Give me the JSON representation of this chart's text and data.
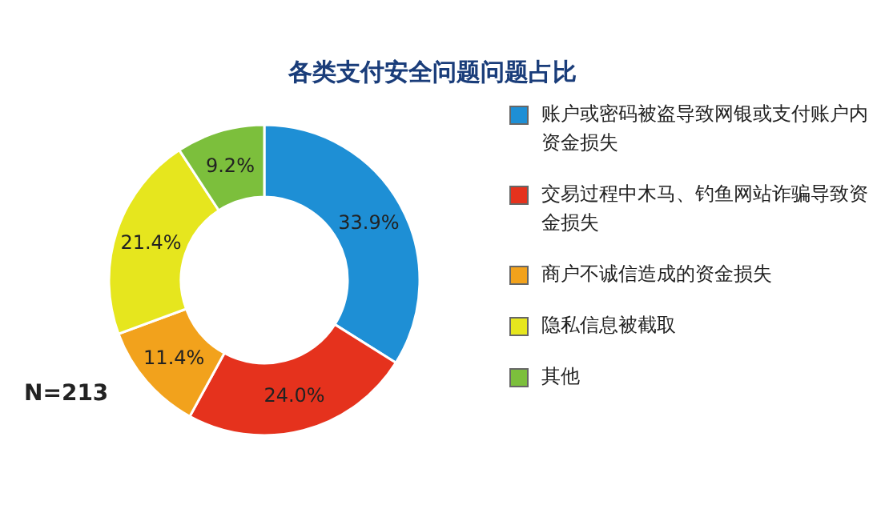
{
  "chart_data": {
    "type": "donut",
    "title": "各类支付安全问题问题占比",
    "categories": [
      "账户或密码被盗导致网银或支付账户内资金损失",
      "交易过程中木马、钓鱼网站诈骗导致资金损失",
      "商户不诚信造成的资金损失",
      "隐私信息被截取",
      "其他"
    ],
    "values": [
      33.9,
      24.0,
      11.4,
      21.4,
      9.2
    ],
    "value_labels": [
      "33.9%",
      "24.0%",
      "11.4%",
      "21.4%",
      "9.2%"
    ],
    "colors": [
      "#1e8fd5",
      "#e5321d",
      "#f2a21c",
      "#e6e61e",
      "#7cbf3c"
    ],
    "legend": "right",
    "annotations": [
      "N=213"
    ]
  }
}
